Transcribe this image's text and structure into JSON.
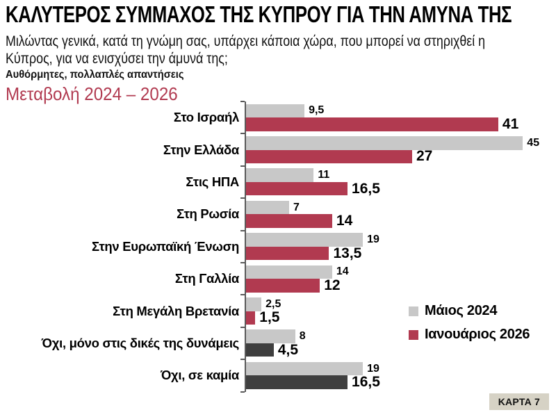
{
  "header": {
    "title": "ΚΑΛΥΤΕΡΟΣ ΣΥΜΜΑΧΟΣ ΤΗΣ ΚΥΠΡΟΥ ΓΙΑ ΤΗΝ ΑΜΥΝΑ ΤΗΣ",
    "subtitle_line1": "Μιλώντας γενικά, κατά τη γνώμη σας, υπάρχει κάποια χώρα, που μπορεί να στηριχθεί η",
    "subtitle_line2": "Κύπρος, για να ενισχύσει την άμυνά της;",
    "note": "Αυθόρμητες, πολλαπλές απαντήσεις",
    "change_label": "Μεταβολή 2024 – 2026"
  },
  "chart_data": {
    "type": "bar",
    "orientation": "horizontal",
    "title": "Μεταβολή 2024 – 2026",
    "xlim": [
      0,
      47
    ],
    "grid": false,
    "legend_position": "right",
    "categories": [
      "Στο Ισραήλ",
      "Στην Ελλάδα",
      "Στις ΗΠΑ",
      "Στη Ρωσία",
      "Στην Ευρωπαϊκή Ένωση",
      "Στη Γαλλία",
      "Στη Μεγάλη Βρετανία",
      "Όχι, μόνο στις δικές της δυνάμεις",
      "Όχι, σε καμία"
    ],
    "series": [
      {
        "name": "Μάιος 2024",
        "color": "#c8c8c8",
        "values": [
          9.5,
          45,
          11,
          7,
          19,
          14,
          2.5,
          8,
          19
        ],
        "labels": [
          "9,5",
          "45",
          "11",
          "7",
          "19",
          "14",
          "2,5",
          "8",
          "19"
        ]
      },
      {
        "name": "Ιανουάριος 2026",
        "color": "#b13a50",
        "values": [
          41,
          27,
          16.5,
          14,
          13.5,
          12,
          1.5,
          4.5,
          16.5
        ],
        "labels": [
          "41",
          "27",
          "16,5",
          "14",
          "13,5",
          "12",
          "1,5",
          "4,5",
          "16,5"
        ],
        "bar_colors": [
          "#b13a50",
          "#b13a50",
          "#b13a50",
          "#b13a50",
          "#b13a50",
          "#b13a50",
          "#b13a50",
          "#3f3f3f",
          "#3f3f3f"
        ]
      }
    ]
  },
  "legend": {
    "items": [
      {
        "label": "Μάιος 2024",
        "color": "#c8c8c8"
      },
      {
        "label": "Ιανουάριος 2026",
        "color": "#b13a50"
      }
    ]
  },
  "footer": {
    "card_label": "ΚΑΡΤΑ 7"
  },
  "colors": {
    "accent_red": "#b13a50",
    "bar_gray": "#c8c8c8",
    "bar_dark": "#3f3f3f",
    "axis": "#595959",
    "card_bg": "#d6d2c5"
  }
}
